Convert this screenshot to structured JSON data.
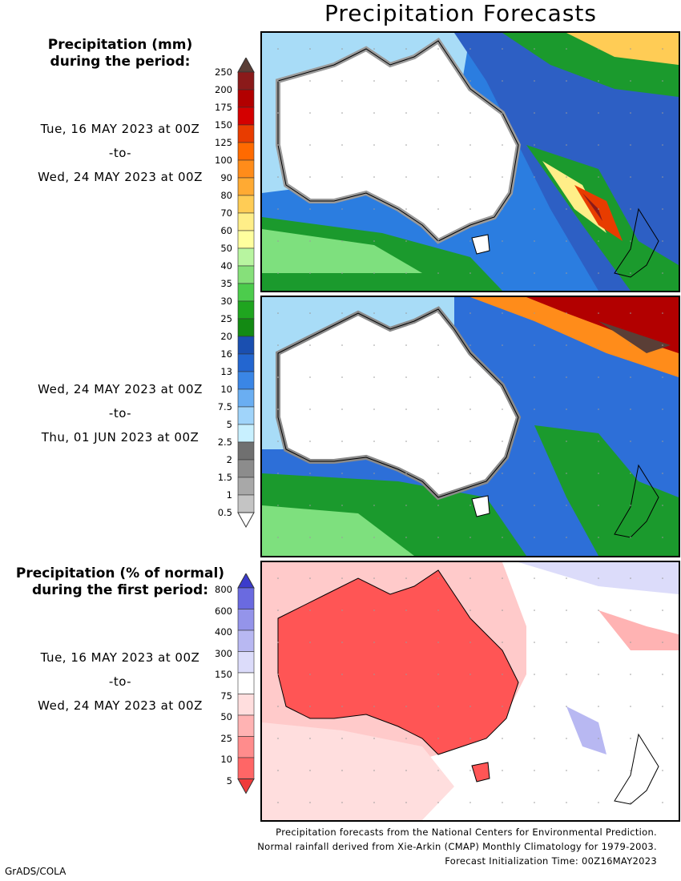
{
  "title": "Precipitation Forecasts",
  "left_header_mm": [
    "Precipitation (mm)",
    "during the period:"
  ],
  "period1": {
    "start": "Tue, 16 MAY 2023 at 00Z",
    "sep": "-to-",
    "end": "Wed, 24 MAY 2023 at 00Z"
  },
  "period2": {
    "start": "Wed, 24 MAY 2023 at 00Z",
    "sep": "-to-",
    "end": "Thu, 01 JUN 2023 at 00Z"
  },
  "left_header_pct": [
    "Precipitation (% of normal)",
    "during the first period:"
  ],
  "period3": {
    "start": "Tue, 16 MAY 2023 at 00Z",
    "sep": "-to-",
    "end": "Wed, 24 MAY 2023 at 00Z"
  },
  "mm_scale": {
    "labels": [
      "250",
      "200",
      "175",
      "150",
      "125",
      "100",
      "90",
      "80",
      "70",
      "60",
      "50",
      "40",
      "35",
      "30",
      "25",
      "20",
      "16",
      "13",
      "10",
      "7.5",
      "5",
      "2.5",
      "2",
      "1.5",
      "1",
      "0.5"
    ],
    "colors": [
      "#5a3e36",
      "#8b1a1a",
      "#b20000",
      "#d40000",
      "#e83c00",
      "#ff6a00",
      "#ff8c1a",
      "#ffaa33",
      "#ffcc55",
      "#ffee88",
      "#ffff9e",
      "#b8f5a0",
      "#86e07a",
      "#4ccc4c",
      "#1fa51f",
      "#138a13",
      "#1a4fb0",
      "#2366d0",
      "#3a86e6",
      "#6aaef2",
      "#a0d4fa",
      "#c8f0ff",
      "#707070",
      "#8c8c8c",
      "#a8a8a8",
      "#c4c4c4",
      "#ffffff"
    ]
  },
  "pct_scale": {
    "labels": [
      "800",
      "600",
      "400",
      "300",
      "150",
      "75",
      "50",
      "25",
      "10",
      "5"
    ],
    "colors": [
      "#3b3bcc",
      "#6a6ae0",
      "#9494ea",
      "#b8b8f2",
      "#dcdcfa",
      "#ffffff",
      "#ffdede",
      "#ffb3b3",
      "#ff8c8c",
      "#ff6666",
      "#ef3b3b"
    ]
  },
  "footer": [
    "Precipitation forecasts from the National Centers for Environmental Prediction.",
    "Normal rainfall derived from Xie-Arkin (CMAP) Monthly Climatology for 1979-2003.",
    "Forecast Initialization Time: 00Z16MAY2023"
  ],
  "credit": "GrADS/COLA"
}
